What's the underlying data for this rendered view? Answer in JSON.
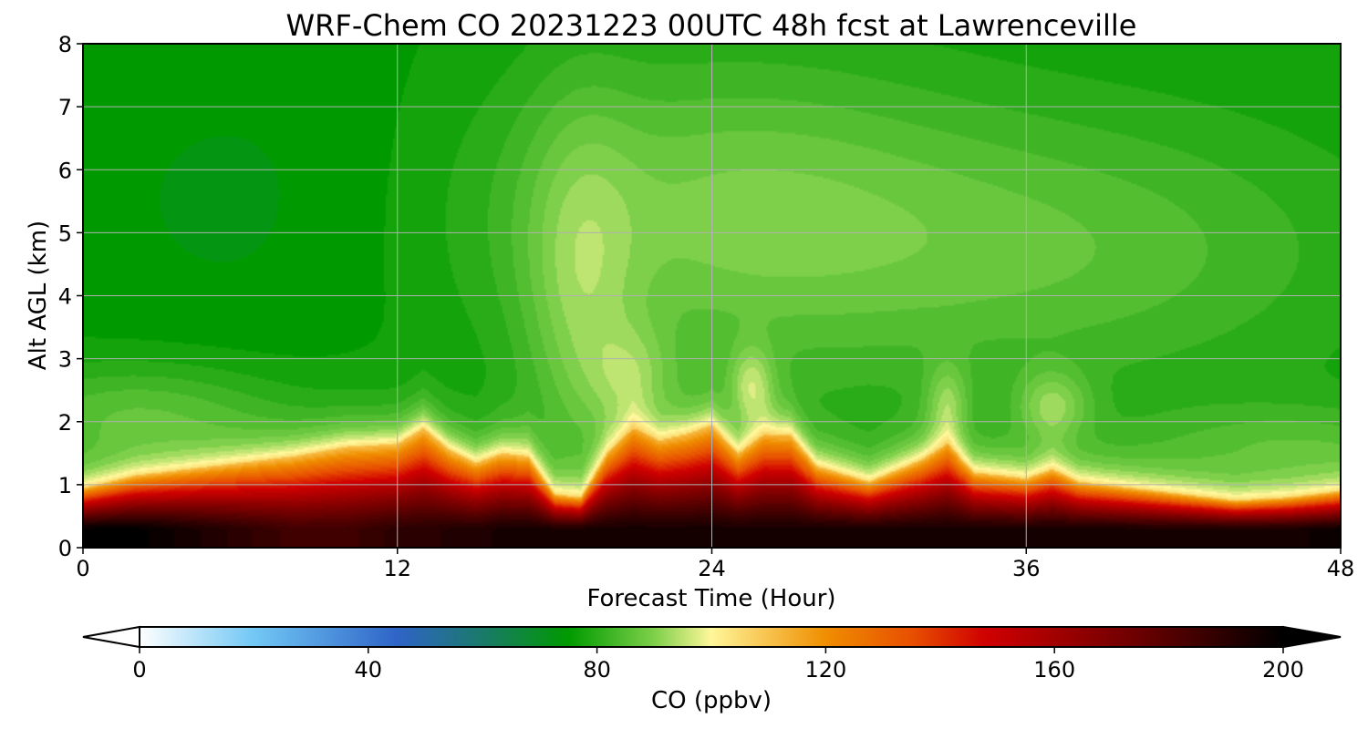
{
  "chart_data": {
    "type": "heatmap",
    "title": "WRF-Chem CO  20231223 00UTC 48h fcst at Lawrenceville",
    "xlabel": "Forecast Time (Hour)",
    "ylabel": "Alt AGL (km)",
    "xlim": [
      0,
      48
    ],
    "ylim": [
      0,
      8
    ],
    "xticks": [
      "0",
      "12",
      "24",
      "36",
      "48"
    ],
    "yticks": [
      "0",
      "1",
      "2",
      "3",
      "4",
      "5",
      "6",
      "7",
      "8"
    ],
    "grid": true,
    "colorbar": {
      "label": "CO  (ppbv)",
      "range": [
        0,
        200
      ],
      "ticks": [
        "0",
        "40",
        "80",
        "120",
        "160",
        "200"
      ],
      "extend": "both",
      "stops": [
        {
          "v": 0,
          "c": "#ffffff"
        },
        {
          "v": 20,
          "c": "#72c8f5"
        },
        {
          "v": 45,
          "c": "#2f64c8"
        },
        {
          "v": 60,
          "c": "#1a7a6a"
        },
        {
          "v": 75,
          "c": "#009a00"
        },
        {
          "v": 90,
          "c": "#7ed04a"
        },
        {
          "v": 100,
          "c": "#fff79a"
        },
        {
          "v": 120,
          "c": "#f08e00"
        },
        {
          "v": 135,
          "c": "#e85000"
        },
        {
          "v": 148,
          "c": "#d00000"
        },
        {
          "v": 175,
          "c": "#6a0000"
        },
        {
          "v": 200,
          "c": "#000000"
        }
      ]
    },
    "x": [
      0,
      2,
      4,
      6,
      8,
      10,
      12,
      13,
      14,
      15,
      16,
      17,
      18,
      19,
      20,
      21,
      22,
      23,
      24,
      25,
      26,
      27,
      28,
      30,
      32,
      33,
      34,
      36,
      37,
      38,
      40,
      42,
      44,
      46,
      48
    ],
    "boundary_layer_top_km": [
      0.95,
      1.15,
      1.25,
      1.35,
      1.45,
      1.6,
      1.65,
      1.9,
      1.55,
      1.35,
      1.5,
      1.45,
      0.85,
      0.8,
      1.5,
      1.9,
      1.7,
      1.8,
      1.95,
      1.5,
      1.8,
      1.8,
      1.3,
      1.05,
      1.4,
      1.65,
      1.2,
      1.1,
      1.25,
      1.05,
      0.95,
      0.85,
      0.75,
      0.8,
      0.9
    ],
    "surface_co_ppbv": [
      200,
      200,
      195,
      190,
      185,
      185,
      190,
      190,
      192,
      192,
      195,
      195,
      195,
      195,
      195,
      195,
      195,
      195,
      195,
      195,
      195,
      195,
      195,
      195,
      195,
      195,
      195,
      195,
      195,
      195,
      195,
      195,
      195,
      195,
      198
    ],
    "free_troposphere_co_ppbv": {
      "hours_0_12_above_3km": 75,
      "hours_20_40_4_to_6km": 88,
      "hours_40_48_above_6km": 76
    }
  }
}
